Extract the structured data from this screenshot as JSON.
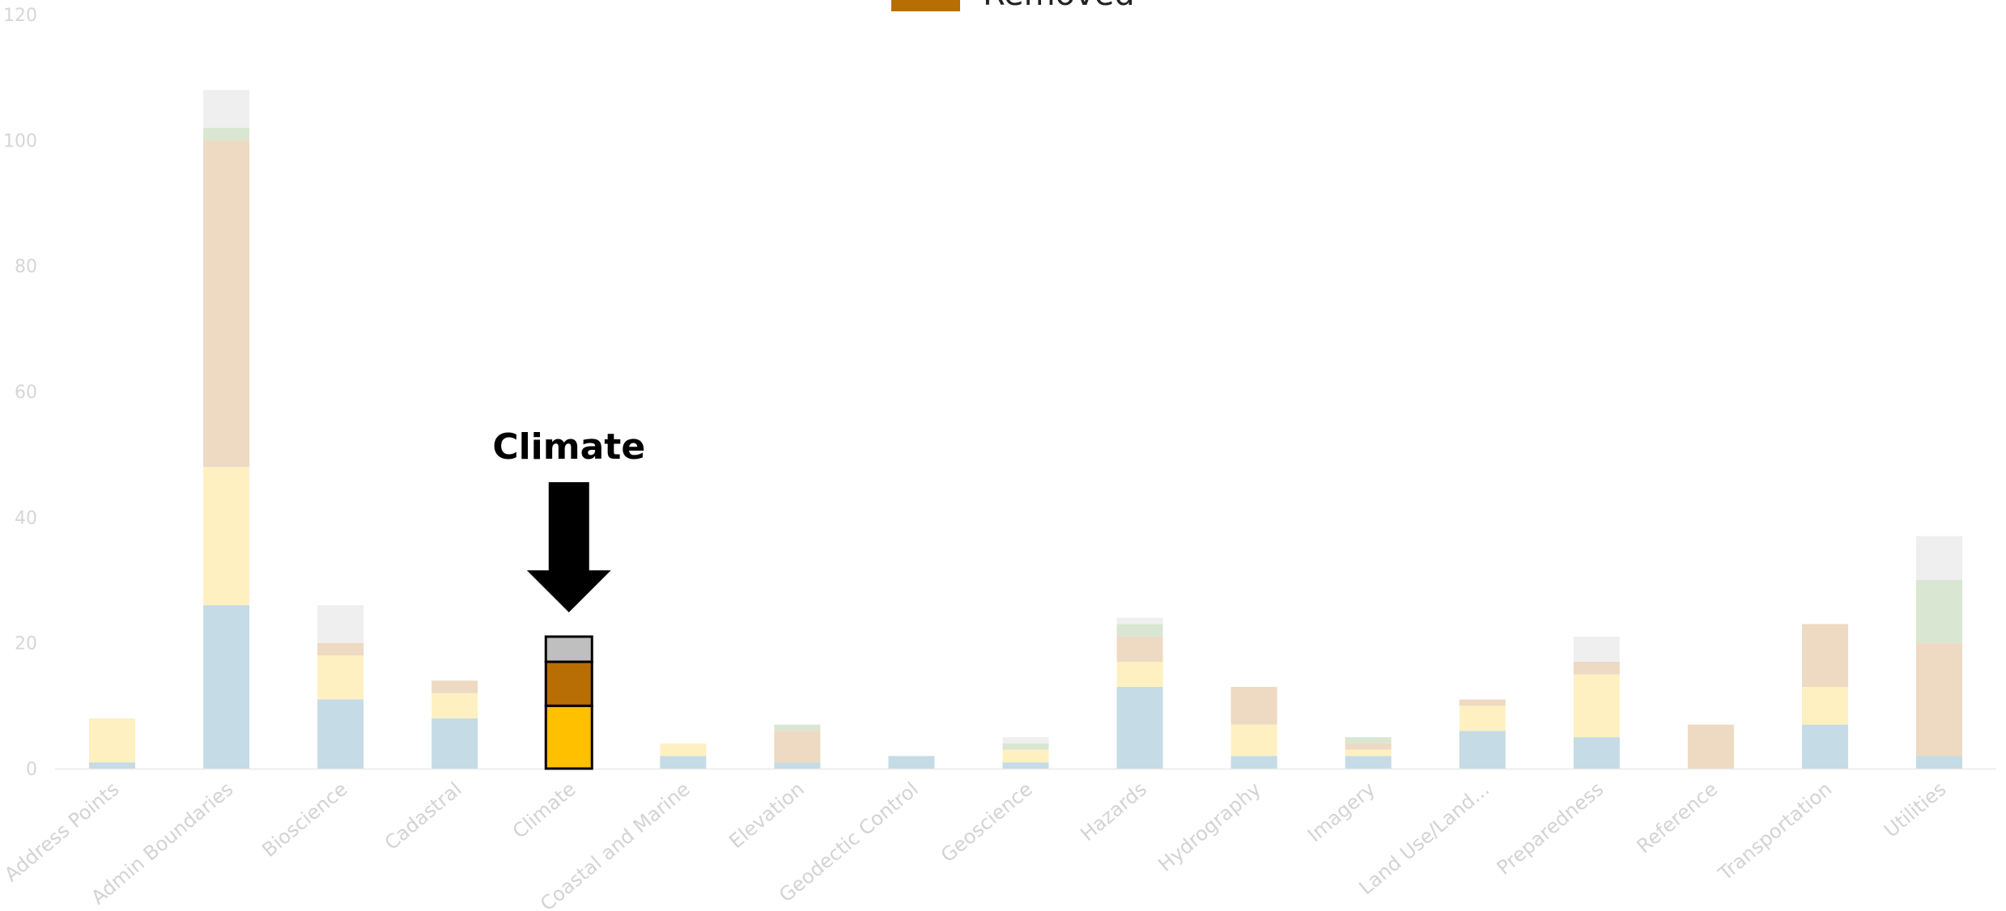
{
  "chart_data": {
    "type": "bar",
    "stacked": true,
    "categories": [
      "Address Points",
      "Admin Boundaries",
      "Bioscience",
      "Cadastral",
      "Climate",
      "Coastal and Marine",
      "Elevation",
      "Geodectic Control",
      "Geoscience",
      "Hazards",
      "Hydrography",
      "Imagery",
      "Land Use/Land...",
      "Preparedness",
      "Reference",
      "Transportation",
      "Utilities"
    ],
    "series": [
      {
        "color": "#c5dbe6",
        "highlight_color": "#ffc000",
        "values": [
          1,
          26,
          11,
          8,
          10,
          2,
          1,
          2,
          1,
          13,
          2,
          2,
          6,
          5,
          0,
          7,
          2
        ]
      },
      {
        "color": "#fff0c2",
        "highlight_color": "#ffc000",
        "values": [
          7,
          22,
          7,
          4,
          0,
          2,
          0,
          0,
          2,
          4,
          5,
          1,
          4,
          10,
          0,
          6,
          0
        ]
      },
      {
        "color": "#eed9c2",
        "highlight_color": "#b86e05",
        "values": [
          0,
          52,
          2,
          2,
          7,
          0,
          5,
          0,
          0,
          4,
          6,
          1,
          1,
          2,
          7,
          10,
          18
        ]
      },
      {
        "color": "#d9e6d1",
        "highlight_color": "#d9e6d1",
        "values": [
          0,
          2,
          0,
          0,
          0,
          0,
          1,
          0,
          1,
          2,
          0,
          1,
          0,
          0,
          0,
          0,
          10
        ]
      },
      {
        "color": "#efefef",
        "highlight_color": "#bfbfbf",
        "values": [
          0,
          6,
          6,
          0,
          4,
          0,
          0,
          0,
          1,
          1,
          0,
          0,
          0,
          4,
          0,
          0,
          7
        ]
      }
    ],
    "highlight_category": "Climate",
    "callout_label": "Climate",
    "legend": [
      {
        "label": "Removed",
        "color": "#b86e05"
      }
    ],
    "ylim": [
      0,
      120
    ],
    "yticks": [
      0,
      20,
      40,
      60,
      80,
      100,
      120
    ],
    "grid": false
  }
}
